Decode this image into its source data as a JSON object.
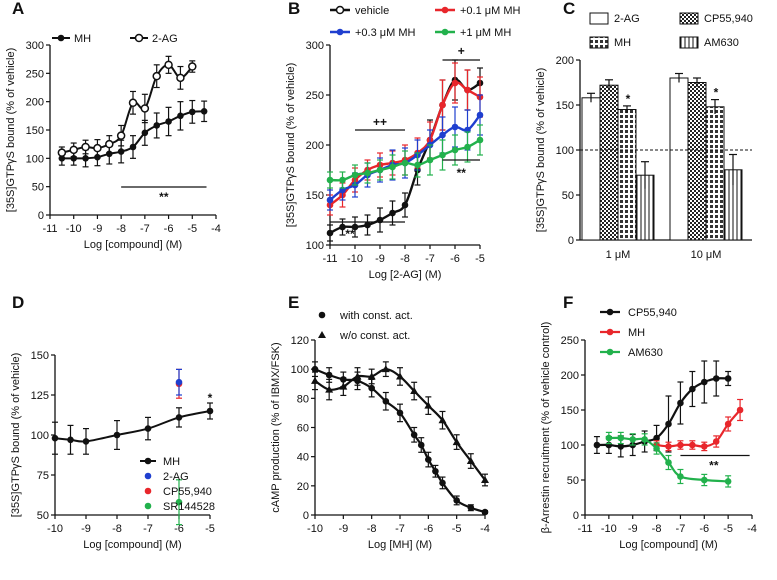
{
  "colors": {
    "black": "#111111",
    "red": "#e8262b",
    "blue": "#1f3fcf",
    "green": "#22b14c"
  },
  "chart_data": [
    {
      "panel": "A",
      "type": "line",
      "ylabel": "[35S]GTPγS bound (% of vehicle)",
      "xlabel": "Log [compound] (M)",
      "xlim": [
        -11,
        -4
      ],
      "ylim": [
        0,
        300
      ],
      "yticks": [
        "0",
        "50",
        "100",
        "150",
        "200",
        "250",
        "300"
      ],
      "xticks": [
        "-11",
        "-10",
        "-9",
        "-8",
        "-7",
        "-6",
        "-5",
        "-4"
      ],
      "legend": [
        "MH",
        "2-AG"
      ],
      "series": [
        {
          "name": "MH",
          "marker": "filled",
          "color": "#111111",
          "x": [
            -10.5,
            -10,
            -9.5,
            -9,
            -8.5,
            -8,
            -7.5,
            -7,
            -6.5,
            -6,
            -5.5,
            -5,
            -4.5
          ],
          "y": [
            100,
            100,
            100,
            102,
            108,
            112,
            120,
            145,
            158,
            165,
            175,
            182,
            183
          ],
          "err": [
            12,
            12,
            15,
            15,
            18,
            20,
            20,
            22,
            22,
            25,
            25,
            20,
            18
          ]
        },
        {
          "name": "2-AG",
          "marker": "open",
          "color": "#111111",
          "x": [
            -10.5,
            -10,
            -9.5,
            -9,
            -8.5,
            -8,
            -7.5,
            -7,
            -6.5,
            -6,
            -5.5,
            -5
          ],
          "y": [
            110,
            115,
            120,
            118,
            125,
            140,
            198,
            188,
            245,
            265,
            242,
            262
          ],
          "err": [
            10,
            12,
            12,
            15,
            15,
            18,
            20,
            25,
            20,
            15,
            20,
            10
          ]
        }
      ],
      "annotations": [
        "**"
      ]
    },
    {
      "panel": "B",
      "type": "line",
      "ylabel": "[35S]GTPγS bound (% of vehicle)",
      "xlabel": "Log [2-AG] (M)",
      "xlim": [
        -11,
        -5
      ],
      "ylim": [
        100,
        300
      ],
      "yticks": [
        "100",
        "150",
        "200",
        "250",
        "300"
      ],
      "xticks": [
        "-11",
        "-10",
        "-9",
        "-8",
        "-7",
        "-6",
        "-5"
      ],
      "legend": [
        "vehicle",
        "+0.1 μM MH",
        "+0.3 μM MH",
        "+1 μM MH"
      ],
      "series": [
        {
          "name": "vehicle",
          "color": "#111111",
          "x": [
            -11,
            -10.5,
            -10,
            -9.5,
            -9,
            -8.5,
            -8,
            -7.5,
            -7,
            -6.5,
            -6,
            -5.5,
            -5
          ],
          "y": [
            112,
            118,
            118,
            120,
            125,
            132,
            140,
            175,
            205,
            240,
            265,
            255,
            262
          ],
          "err": [
            8,
            8,
            10,
            10,
            12,
            12,
            12,
            15,
            20,
            25,
            20,
            20,
            15
          ]
        },
        {
          "name": "+0.1 μM MH",
          "color": "#e8262b",
          "x": [
            -11,
            -10.5,
            -10,
            -9.5,
            -9,
            -8.5,
            -8,
            -7.5,
            -7,
            -6.5,
            -6,
            -5.5,
            -5
          ],
          "y": [
            140,
            150,
            165,
            175,
            180,
            182,
            185,
            192,
            205,
            240,
            262,
            255,
            248
          ],
          "err": [
            10,
            12,
            12,
            10,
            12,
            12,
            15,
            15,
            18,
            25,
            20,
            20,
            20
          ]
        },
        {
          "name": "+0.3 μM MH",
          "color": "#1f3fcf",
          "x": [
            -11,
            -10.5,
            -10,
            -9.5,
            -9,
            -8.5,
            -8,
            -7.5,
            -7,
            -6.5,
            -6,
            -5.5,
            -5
          ],
          "y": [
            145,
            155,
            160,
            170,
            175,
            180,
            182,
            190,
            200,
            210,
            218,
            215,
            230
          ],
          "err": [
            10,
            10,
            12,
            12,
            12,
            15,
            15,
            15,
            15,
            18,
            20,
            20,
            20
          ]
        },
        {
          "name": "+1 μM MH",
          "color": "#22b14c",
          "x": [
            -11,
            -10.5,
            -10,
            -9.5,
            -9,
            -8.5,
            -8,
            -7.5,
            -7,
            -6.5,
            -6,
            -5.5,
            -5
          ],
          "y": [
            165,
            165,
            170,
            172,
            175,
            178,
            182,
            180,
            185,
            190,
            195,
            198,
            205
          ],
          "err": [
            8,
            8,
            10,
            10,
            10,
            12,
            12,
            12,
            15,
            15,
            15,
            15,
            15
          ]
        }
      ],
      "annotations": [
        "++",
        "+",
        "**",
        "**"
      ]
    },
    {
      "panel": "C",
      "type": "bar",
      "ylabel": "[35S]GTPγS bound (% of vehicle)",
      "xlabel": "",
      "ylim": [
        0,
        200
      ],
      "yticks": [
        "0",
        "50",
        "100",
        "150",
        "200"
      ],
      "categories": [
        "1 μM",
        "10 μM"
      ],
      "legend": [
        "2-AG",
        "CP55,940",
        "MH",
        "AM630"
      ],
      "series": [
        {
          "name": "2-AG",
          "values": [
            158,
            180
          ],
          "err": [
            5,
            5
          ]
        },
        {
          "name": "MH",
          "values": [
            172,
            175
          ],
          "err": [
            6,
            5
          ]
        },
        {
          "name": "CP55,940",
          "values": [
            145,
            148
          ],
          "err": [
            4,
            8
          ]
        },
        {
          "name": "AM630",
          "values": [
            72,
            78
          ],
          "err": [
            15,
            17
          ]
        }
      ],
      "annotations": [
        "*",
        "*"
      ]
    },
    {
      "panel": "D",
      "type": "scatter",
      "ylabel": "[35S]GTPγS bound (% of vehicle)",
      "xlabel": "Log [compound] (M)",
      "xlim": [
        -10,
        -5
      ],
      "ylim": [
        50,
        150
      ],
      "yticks": [
        "50",
        "75",
        "100",
        "125",
        "150"
      ],
      "xticks": [
        "-10",
        "-9",
        "-8",
        "-7",
        "-6",
        "-5"
      ],
      "legend": [
        "MH",
        "2-AG",
        "CP55,940",
        "SR144528"
      ],
      "series": [
        {
          "name": "MH",
          "color": "#111111",
          "x": [
            -10,
            -9.5,
            -9,
            -8,
            -7,
            -6,
            -5
          ],
          "y": [
            98,
            97,
            96,
            100,
            104,
            111,
            115
          ],
          "err": [
            10,
            9,
            8,
            9,
            7,
            6,
            5
          ]
        },
        {
          "name": "2-AG",
          "color": "#1f3fcf",
          "x": [
            -6
          ],
          "y": [
            133
          ],
          "err": [
            8
          ]
        },
        {
          "name": "CP55,940",
          "color": "#e8262b",
          "x": [
            -6
          ],
          "y": [
            132
          ],
          "err": [
            9
          ]
        },
        {
          "name": "SR144528",
          "color": "#22b14c",
          "x": [
            -6
          ],
          "y": [
            58
          ],
          "err": [
            14
          ]
        }
      ],
      "annotations": [
        "*"
      ]
    },
    {
      "panel": "E",
      "type": "line",
      "ylabel": "cAMP production (% of IBMX/FSK)",
      "xlabel": "Log [MH] (M)",
      "xlim": [
        -10,
        -4
      ],
      "ylim": [
        0,
        120
      ],
      "yticks": [
        "0",
        "20",
        "40",
        "60",
        "80",
        "100",
        "120"
      ],
      "xticks": [
        "-10",
        "-9",
        "-8",
        "-7",
        "-6",
        "-5",
        "-4"
      ],
      "legend": [
        "with const. act.",
        "w/o const. act."
      ],
      "series": [
        {
          "name": "with const. act.",
          "marker": "circle",
          "color": "#111111",
          "x": [
            -10,
            -9.5,
            -9,
            -8.5,
            -8,
            -7.5,
            -7,
            -6.5,
            -6.25,
            -6,
            -5.75,
            -5.5,
            -5,
            -4.5,
            -4
          ],
          "y": [
            100,
            96,
            93,
            92,
            87,
            78,
            70,
            55,
            48,
            38,
            30,
            22,
            10,
            5,
            2
          ],
          "err": [
            5,
            5,
            5,
            6,
            6,
            6,
            6,
            5,
            5,
            5,
            4,
            4,
            3,
            2,
            1
          ]
        },
        {
          "name": "w/o const. act.",
          "marker": "triangle",
          "color": "#111111",
          "x": [
            -10,
            -9.5,
            -9,
            -8.5,
            -8,
            -7.5,
            -7,
            -6.5,
            -6,
            -5.5,
            -5,
            -4.5,
            -4
          ],
          "y": [
            92,
            86,
            88,
            95,
            95,
            100,
            95,
            85,
            75,
            65,
            50,
            37,
            24
          ],
          "err": [
            6,
            7,
            6,
            6,
            5,
            5,
            6,
            6,
            6,
            6,
            5,
            5,
            4
          ]
        }
      ]
    },
    {
      "panel": "F",
      "type": "line",
      "ylabel": "β-Arrestin recruitment (% of vehicle control)",
      "xlabel": "Log [compound] (M)",
      "xlim": [
        -11,
        -4
      ],
      "ylim": [
        0,
        250
      ],
      "yticks": [
        "0",
        "50",
        "100",
        "150",
        "200",
        "250"
      ],
      "xticks": [
        "-11",
        "-10",
        "-9",
        "-8",
        "-7",
        "-6",
        "-5",
        "-4"
      ],
      "legend": [
        "CP55,940",
        "MH",
        "AM630"
      ],
      "series": [
        {
          "name": "CP55,940",
          "color": "#111111",
          "x": [
            -10.5,
            -10,
            -9.5,
            -9,
            -8.5,
            -8,
            -7.5,
            -7,
            -6.5,
            -6,
            -5.5,
            -5
          ],
          "y": [
            100,
            100,
            98,
            100,
            105,
            110,
            130,
            160,
            180,
            190,
            195,
            195
          ],
          "err": [
            12,
            12,
            15,
            15,
            15,
            18,
            40,
            30,
            25,
            30,
            25,
            10
          ]
        },
        {
          "name": "MH",
          "color": "#e8262b",
          "x": [
            -8,
            -7.5,
            -7,
            -6.5,
            -6,
            -5.5,
            -5,
            -4.5
          ],
          "y": [
            100,
            98,
            100,
            100,
            98,
            105,
            130,
            150
          ],
          "err": [
            6,
            6,
            6,
            6,
            6,
            8,
            10,
            15
          ]
        },
        {
          "name": "AM630",
          "color": "#22b14c",
          "x": [
            -10,
            -9.5,
            -9,
            -8.5,
            -8,
            -7.5,
            -7,
            -6,
            -5
          ],
          "y": [
            110,
            110,
            108,
            108,
            95,
            75,
            55,
            50,
            48
          ],
          "err": [
            8,
            8,
            8,
            8,
            8,
            10,
            10,
            8,
            8
          ]
        }
      ],
      "annotations": [
        "**"
      ]
    }
  ]
}
